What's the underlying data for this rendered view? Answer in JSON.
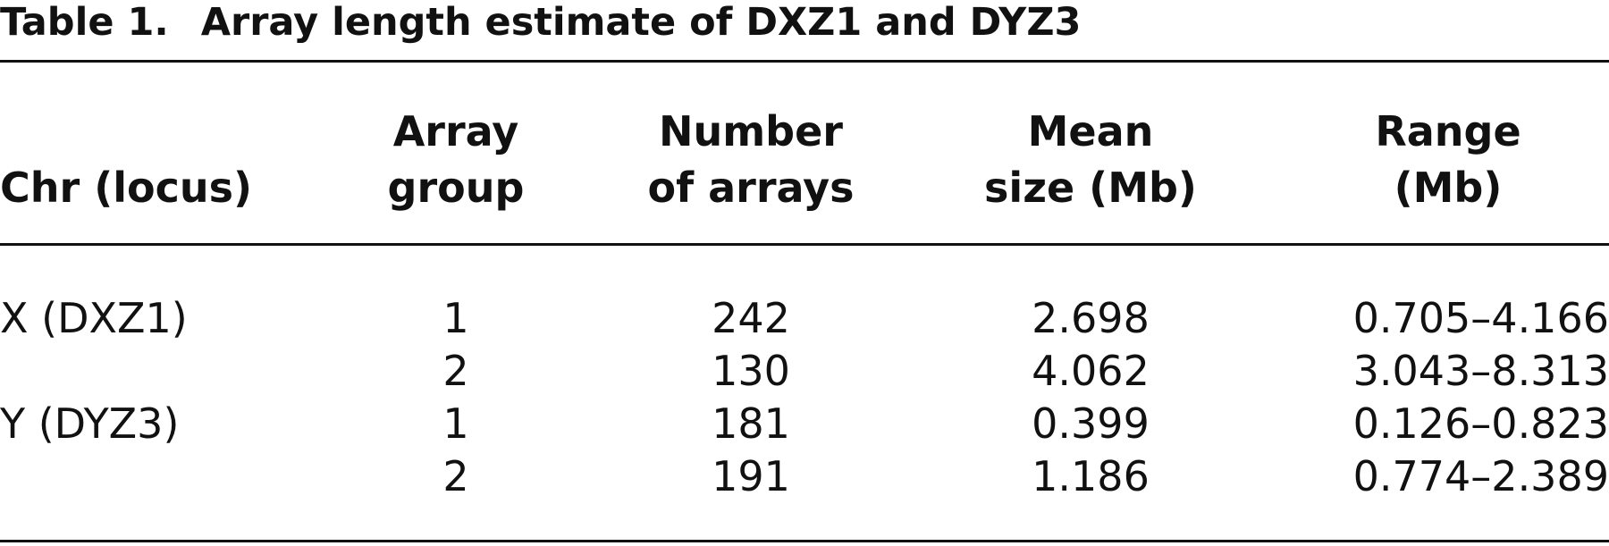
{
  "caption": {
    "label": "Table 1.",
    "title": "Array length estimate of DXZ1 and DYZ3"
  },
  "table": {
    "columns": [
      {
        "line1": "",
        "line2": "Chr (locus)"
      },
      {
        "line1": "Array",
        "line2": "group"
      },
      {
        "line1": "Number",
        "line2": "of arrays"
      },
      {
        "line1": "Mean",
        "line2": "size (Mb)"
      },
      {
        "line1": "Range",
        "line2": "(Mb)"
      }
    ],
    "rows": [
      {
        "chr": "X (DXZ1)",
        "group": "1",
        "n": "242",
        "mean": "2.698",
        "range": "0.705–4.166"
      },
      {
        "chr": "",
        "group": "2",
        "n": "130",
        "mean": "4.062",
        "range": "3.043–8.313"
      },
      {
        "chr": "Y (DYZ3)",
        "group": "1",
        "n": "181",
        "mean": "0.399",
        "range": "0.126–0.823"
      },
      {
        "chr": "",
        "group": "2",
        "n": "191",
        "mean": "1.186",
        "range": "0.774–2.389"
      }
    ]
  }
}
